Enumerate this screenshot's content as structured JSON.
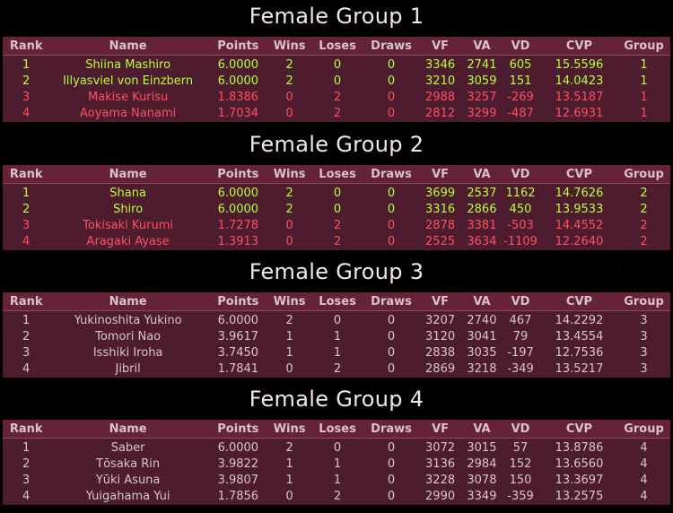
{
  "columns": [
    "Rank",
    "Name",
    "Points",
    "Wins",
    "Loses",
    "Draws",
    "VF",
    "VA",
    "VD",
    "CVP",
    "Group"
  ],
  "groups": [
    {
      "title": "Female Group 1",
      "rows": [
        {
          "status": "green",
          "cells": [
            "1",
            "Shiina Mashiro",
            "6.0000",
            "2",
            "0",
            "0",
            "3346",
            "2741",
            "605",
            "15.5596",
            "1"
          ]
        },
        {
          "status": "green",
          "cells": [
            "2",
            "Illyasviel von Einzbern",
            "6.0000",
            "2",
            "0",
            "0",
            "3210",
            "3059",
            "151",
            "14.0423",
            "1"
          ]
        },
        {
          "status": "red",
          "cells": [
            "3",
            "Makise Kurisu",
            "1.8386",
            "0",
            "2",
            "0",
            "2988",
            "3257",
            "-269",
            "13.5187",
            "1"
          ]
        },
        {
          "status": "red",
          "cells": [
            "4",
            "Aoyama Nanami",
            "1.7034",
            "0",
            "2",
            "0",
            "2812",
            "3299",
            "-487",
            "12.6931",
            "1"
          ]
        }
      ]
    },
    {
      "title": "Female Group 2",
      "rows": [
        {
          "status": "green",
          "cells": [
            "1",
            "Shana",
            "6.0000",
            "2",
            "0",
            "0",
            "3699",
            "2537",
            "1162",
            "14.7626",
            "2"
          ]
        },
        {
          "status": "green",
          "cells": [
            "2",
            "Shiro",
            "6.0000",
            "2",
            "0",
            "0",
            "3316",
            "2866",
            "450",
            "13.9533",
            "2"
          ]
        },
        {
          "status": "red",
          "cells": [
            "3",
            "Tokisaki Kurumi",
            "1.7278",
            "0",
            "2",
            "0",
            "2878",
            "3381",
            "-503",
            "14.4552",
            "2"
          ]
        },
        {
          "status": "red",
          "cells": [
            "4",
            "Aragaki Ayase",
            "1.3913",
            "0",
            "2",
            "0",
            "2525",
            "3634",
            "-1109",
            "12.2640",
            "2"
          ]
        }
      ]
    },
    {
      "title": "Female Group 3",
      "rows": [
        {
          "status": "plain",
          "cells": [
            "1",
            "Yukinoshita Yukino",
            "6.0000",
            "2",
            "0",
            "0",
            "3207",
            "2740",
            "467",
            "14.2292",
            "3"
          ]
        },
        {
          "status": "plain",
          "cells": [
            "2",
            "Tomori Nao",
            "3.9617",
            "1",
            "1",
            "0",
            "3120",
            "3041",
            "79",
            "13.4554",
            "3"
          ]
        },
        {
          "status": "plain",
          "cells": [
            "3",
            "Isshiki Iroha",
            "3.7450",
            "1",
            "1",
            "0",
            "2838",
            "3035",
            "-197",
            "12.7536",
            "3"
          ]
        },
        {
          "status": "plain",
          "cells": [
            "4",
            "Jibril",
            "1.7841",
            "0",
            "2",
            "0",
            "2869",
            "3218",
            "-349",
            "13.5217",
            "3"
          ]
        }
      ]
    },
    {
      "title": "Female Group 4",
      "rows": [
        {
          "status": "plain",
          "cells": [
            "1",
            "Saber",
            "6.0000",
            "2",
            "0",
            "0",
            "3072",
            "3015",
            "57",
            "13.8786",
            "4"
          ]
        },
        {
          "status": "plain",
          "cells": [
            "2",
            "Tōsaka Rin",
            "3.9822",
            "1",
            "1",
            "0",
            "3136",
            "2984",
            "152",
            "13.6560",
            "4"
          ]
        },
        {
          "status": "plain",
          "cells": [
            "3",
            "Yūki Asuna",
            "3.9807",
            "1",
            "1",
            "0",
            "3228",
            "3078",
            "150",
            "13.3697",
            "4"
          ]
        },
        {
          "status": "plain",
          "cells": [
            "4",
            "Yuigahama Yui",
            "1.7856",
            "0",
            "2",
            "0",
            "2990",
            "3349",
            "-359",
            "13.2575",
            "4"
          ]
        }
      ]
    }
  ],
  "colors": {
    "advance": "#b8ff3c",
    "eliminated": "#ff4f5e",
    "neutral": "#d6c6cd",
    "header_bg": "#66223a",
    "row_bg": "#4e1c2f"
  }
}
